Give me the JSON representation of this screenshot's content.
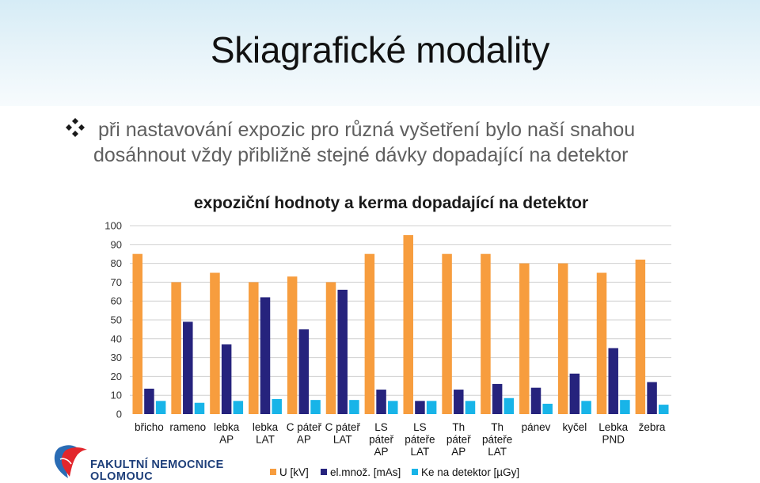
{
  "slide": {
    "title": "Skiagrafické modality",
    "bullet_line1": "při nastavování expozic pro různá vyšetření bylo naší snahou",
    "bullet_line2": "dosáhnout vždy přibližně stejné dávky dopadající na detektor",
    "bullet_icon": "four-diamond-bullet-icon"
  },
  "logo": {
    "line1": "FAKULTNÍ NEMOCNICE",
    "line2": "OLOMOUC"
  },
  "colors": {
    "u_kv": "#f79d3e",
    "el_mnoz": "#26237d",
    "ke": "#18b4e8",
    "grid": "#d0d0d0",
    "header_bg": "#d6ecf6"
  },
  "chart_data": {
    "type": "bar",
    "title": "expoziční hodnoty a kerma dopadající na detektor",
    "xlabel": "",
    "ylabel": "",
    "ylim": [
      0,
      100
    ],
    "yticks": [
      0,
      10,
      20,
      30,
      40,
      50,
      60,
      70,
      80,
      90,
      100
    ],
    "grid": true,
    "legend_position": "bottom",
    "categories": [
      [
        "břicho"
      ],
      [
        "rameno"
      ],
      [
        "lebka",
        "AP"
      ],
      [
        "lebka",
        "LAT"
      ],
      [
        "C páteř",
        "AP"
      ],
      [
        "C páteř",
        "LAT"
      ],
      [
        "LS",
        "páteř",
        "AP"
      ],
      [
        "LS",
        "páteře",
        "LAT"
      ],
      [
        "Th",
        "páteř",
        "AP"
      ],
      [
        "Th",
        "páteře",
        "LAT"
      ],
      [
        "pánev"
      ],
      [
        "kyčel"
      ],
      [
        "Lebka",
        "PND"
      ],
      [
        "žebra"
      ]
    ],
    "series": [
      {
        "name": "U [kV]",
        "values": [
          85,
          70,
          75,
          70,
          73,
          70,
          85,
          95,
          85,
          85,
          80,
          80,
          75,
          82
        ]
      },
      {
        "name": "el.množ. [mAs]",
        "values": [
          13.5,
          49,
          37,
          62,
          45,
          66,
          13,
          7,
          13,
          16,
          14,
          21.5,
          35,
          17
        ]
      },
      {
        "name": "Ke na detektor [µGy]",
        "values": [
          7,
          6,
          7,
          8,
          7.5,
          7.5,
          7,
          7,
          7,
          8.5,
          5.5,
          7,
          7.5,
          5
        ]
      }
    ]
  }
}
